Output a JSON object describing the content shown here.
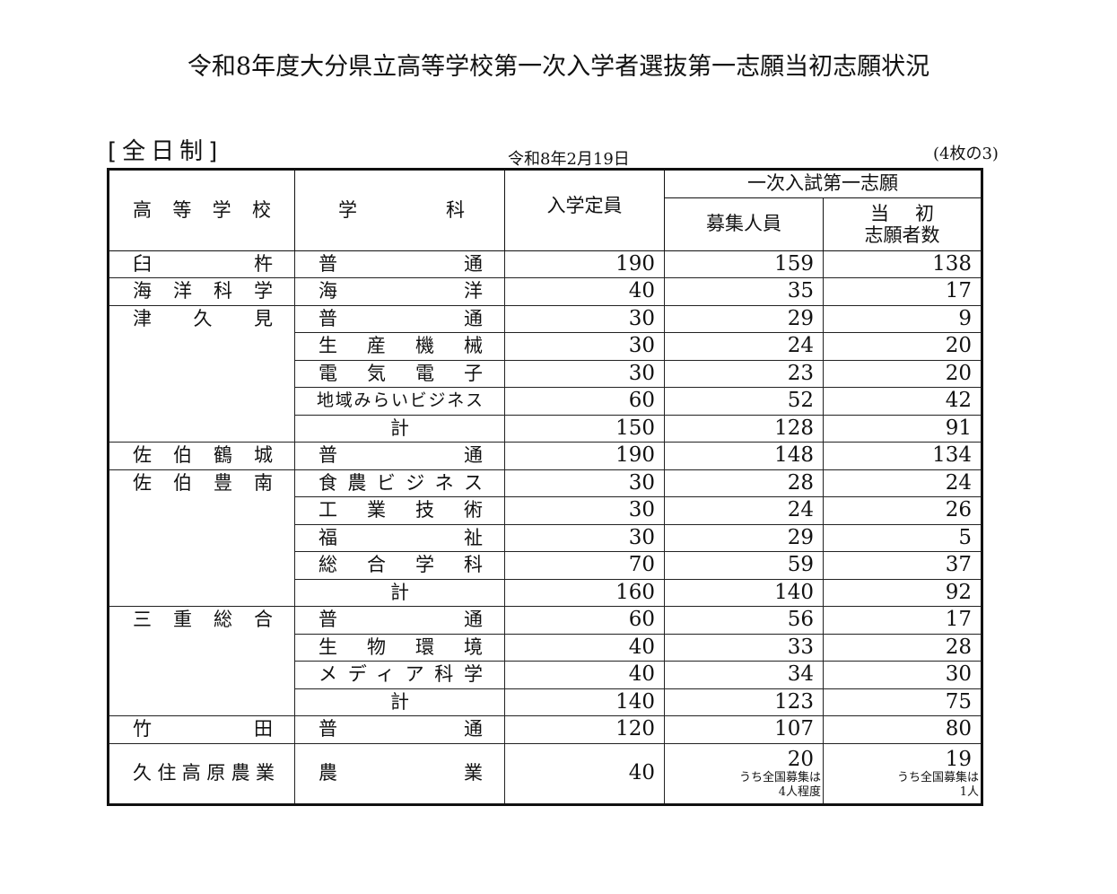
{
  "title": "令和8年度大分県立高等学校第一次入学者選抜第一志願当初志願状況",
  "section": "[全日制]",
  "date": "令和8年2月19日",
  "page": "(4枚の3)",
  "headers": {
    "school": "高等学校",
    "dept": "学科",
    "capacity": "入学定員",
    "group": "一次入試第一志願",
    "recruit": "募集人員",
    "applicants_1": "当初",
    "applicants_2": "志願者数"
  },
  "total_label": "計",
  "groups": [
    {
      "school": "臼杵",
      "rows": [
        {
          "dept": "普通",
          "capacity": "190",
          "recruit": "159",
          "applicants": "138"
        }
      ]
    },
    {
      "school": "海洋科学",
      "rows": [
        {
          "dept": "海洋",
          "capacity": "40",
          "recruit": "35",
          "applicants": "17"
        }
      ]
    },
    {
      "school": "津久見",
      "rows": [
        {
          "dept": "普通",
          "capacity": "30",
          "recruit": "29",
          "applicants": "9"
        },
        {
          "dept": "生産機械",
          "capacity": "30",
          "recruit": "24",
          "applicants": "20"
        },
        {
          "dept": "電気電子",
          "capacity": "30",
          "recruit": "23",
          "applicants": "20"
        },
        {
          "dept": "地域みらいビジネス",
          "capacity": "60",
          "recruit": "52",
          "applicants": "42"
        }
      ],
      "total": {
        "capacity": "150",
        "recruit": "128",
        "applicants": "91"
      }
    },
    {
      "school": "佐伯鶴城",
      "rows": [
        {
          "dept": "普通",
          "capacity": "190",
          "recruit": "148",
          "applicants": "134"
        }
      ]
    },
    {
      "school": "佐伯豊南",
      "rows": [
        {
          "dept": "食農ビジネス",
          "capacity": "30",
          "recruit": "28",
          "applicants": "24"
        },
        {
          "dept": "工業技術",
          "capacity": "30",
          "recruit": "24",
          "applicants": "26"
        },
        {
          "dept": "福祉",
          "capacity": "30",
          "recruit": "29",
          "applicants": "5"
        },
        {
          "dept": "総合学科",
          "capacity": "70",
          "recruit": "59",
          "applicants": "37"
        }
      ],
      "total": {
        "capacity": "160",
        "recruit": "140",
        "applicants": "92"
      }
    },
    {
      "school": "三重総合",
      "rows": [
        {
          "dept": "普通",
          "capacity": "60",
          "recruit": "56",
          "applicants": "17"
        },
        {
          "dept": "生物環境",
          "capacity": "40",
          "recruit": "33",
          "applicants": "28"
        },
        {
          "dept": "メディア科学",
          "capacity": "40",
          "recruit": "34",
          "applicants": "30"
        }
      ],
      "total": {
        "capacity": "140",
        "recruit": "123",
        "applicants": "75"
      }
    },
    {
      "school": "竹田",
      "rows": [
        {
          "dept": "普通",
          "capacity": "120",
          "recruit": "107",
          "applicants": "80"
        }
      ]
    }
  ],
  "last": {
    "school": "久住高原農業",
    "dept": "農業",
    "capacity": "40",
    "recruit": "20",
    "recruit_note_1": "うち全国募集は",
    "recruit_note_2": "4人程度",
    "applicants": "19",
    "applicants_note_1": "うち全国募集は",
    "applicants_note_2": "1人"
  }
}
